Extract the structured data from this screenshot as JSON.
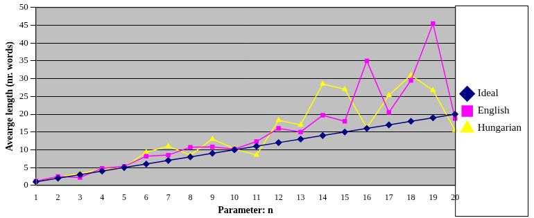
{
  "chart_data": {
    "type": "line",
    "x_label": "Parameter: n",
    "y_label": "Avearge length (nr. words)",
    "categories": [
      1,
      2,
      3,
      4,
      5,
      6,
      7,
      8,
      9,
      10,
      11,
      12,
      13,
      14,
      15,
      16,
      17,
      18,
      19,
      20
    ],
    "series": [
      {
        "name": "Ideal",
        "color": "#000080",
        "marker": "diamond",
        "values": [
          1,
          2,
          3,
          4,
          5,
          6,
          7,
          8,
          9,
          10,
          11,
          12,
          13,
          14,
          15,
          16,
          17,
          18,
          19,
          20
        ]
      },
      {
        "name": "English",
        "color": "#ff00ff",
        "marker": "square",
        "values": [
          1.2,
          2.5,
          2.2,
          4.8,
          5.3,
          8.2,
          8.5,
          10.7,
          10.8,
          10.2,
          12.3,
          16,
          15,
          19.7,
          18,
          35,
          20.5,
          29.5,
          45.5,
          18.8
        ]
      },
      {
        "name": "Hungarian",
        "color": "#ffff00",
        "marker": "triangle",
        "values": [
          1.2,
          2.3,
          3.3,
          4.5,
          5,
          9.3,
          11,
          8.5,
          13,
          10.3,
          8.5,
          18.3,
          17,
          28.5,
          27,
          16.2,
          25.3,
          31,
          26.7,
          15.5
        ]
      }
    ],
    "ylim": [
      0,
      50
    ],
    "yticks": [
      0,
      5,
      10,
      15,
      20,
      25,
      30,
      35,
      40,
      45,
      50
    ],
    "grid": true,
    "legend": "right"
  }
}
